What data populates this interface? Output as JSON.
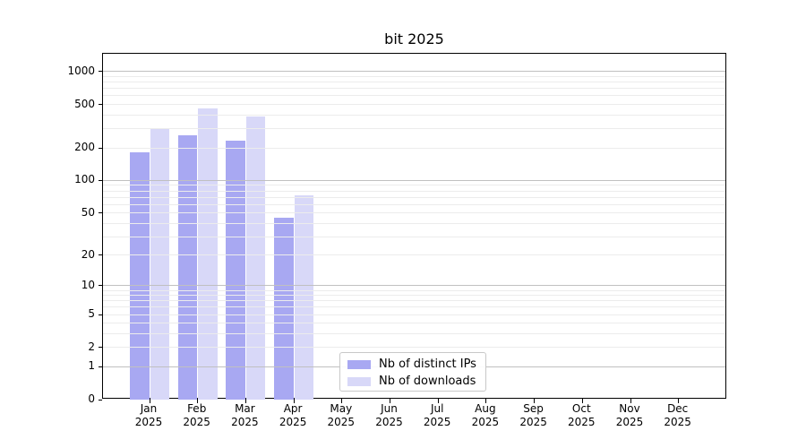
{
  "title": "bit 2025",
  "chart_data": {
    "type": "bar",
    "title": "bit 2025",
    "x_categories": [
      "Jan",
      "Feb",
      "Mar",
      "Apr",
      "May",
      "Jun",
      "Jul",
      "Aug",
      "Sep",
      "Oct",
      "Nov",
      "Dec"
    ],
    "x_year": "2025",
    "series": [
      {
        "name": "Nb of distinct IPs",
        "color": "#a8a8f2",
        "values": [
          182,
          260,
          233,
          45,
          null,
          null,
          null,
          null,
          null,
          null,
          null,
          null
        ]
      },
      {
        "name": "Nb of downloads",
        "color": "#d8d8f8",
        "values": [
          302,
          458,
          386,
          73,
          null,
          null,
          null,
          null,
          null,
          null,
          null,
          null
        ]
      }
    ],
    "y_axis": {
      "scale": "log1p",
      "tick_values": [
        0,
        1,
        2,
        5,
        10,
        20,
        50,
        100,
        200,
        500,
        1000
      ],
      "major_grid_values": [
        1,
        10,
        100,
        1000
      ],
      "range": [
        0,
        1460
      ]
    },
    "grid": "horizontal",
    "legend_position": "bottom-center",
    "legend_entries": [
      "Nb of distinct IPs",
      "Nb of downloads"
    ]
  },
  "colors": {
    "bar_distinct_ips": "#a8a8f2",
    "bar_downloads": "#d8d8f8",
    "grid_major": "#c0c0c0",
    "grid_minor": "#ececec",
    "axis": "#000000",
    "legend_border": "#c8c8c8",
    "background": "#ffffff"
  }
}
